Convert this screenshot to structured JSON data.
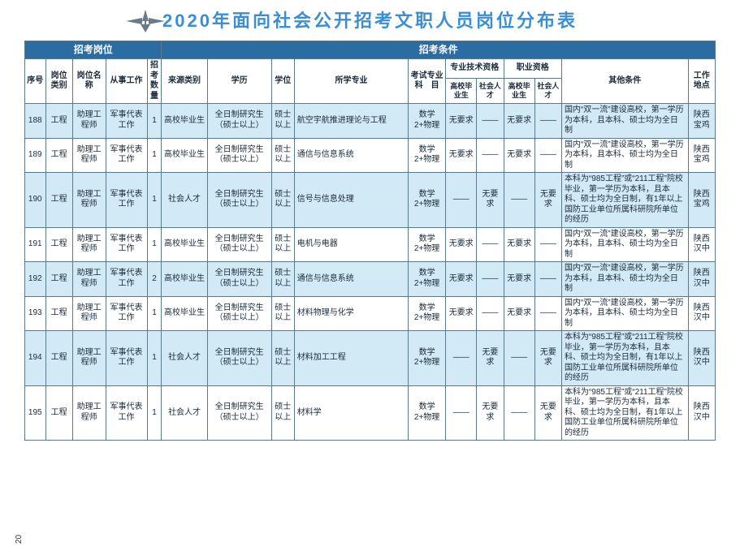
{
  "page": {
    "title": "2020年面向社会公开招考文职人员岗位分布表",
    "number": "20"
  },
  "colors": {
    "title": "#3a8fd4",
    "header_bg": "#2b6ca3",
    "header_fg": "#ffffff",
    "row_alt_bg": "#d2eaf5",
    "row_bg": "#ffffff",
    "border": "#5a7a8a"
  },
  "headers": {
    "group_positions": "招考岗位",
    "group_conditions": "招考条件",
    "seq": "序号",
    "cat": "岗位类别",
    "name": "岗位名称",
    "work": "从事工作",
    "qty": "招考数量",
    "src": "来源类别",
    "edu": "学历",
    "deg": "学位",
    "major": "所学专业",
    "exam": "考试专业科　目",
    "pro_qual": "专业技术资格",
    "voc_qual": "职业资格",
    "other": "其他条件",
    "loc": "工作地点",
    "sub_grad": "高校毕业生",
    "sub_soc": "社会人才"
  },
  "rows": [
    {
      "seq": "188",
      "cat": "工程",
      "name": "助理工程师",
      "work": "军事代表工作",
      "qty": "1",
      "src": "高校毕业生",
      "edu": "全日制研究生（硕士以上）",
      "deg": "硕士以上",
      "major": "航空宇航推进理论与工程",
      "exam": "数学2+物理",
      "pq1": "无要求",
      "pq2": "——",
      "vq1": "无要求",
      "vq2": "——",
      "other": "国内“双一流”建设高校，第一学历为本科，且本科、硕士均为全日制",
      "loc": "陕西宝鸡"
    },
    {
      "seq": "189",
      "cat": "工程",
      "name": "助理工程师",
      "work": "军事代表工作",
      "qty": "1",
      "src": "高校毕业生",
      "edu": "全日制研究生（硕士以上）",
      "deg": "硕士以上",
      "major": "通信与信息系统",
      "exam": "数学2+物理",
      "pq1": "无要求",
      "pq2": "——",
      "vq1": "无要求",
      "vq2": "——",
      "other": "国内“双一流”建设高校，第一学历为本科，且本科、硕士均为全日制",
      "loc": "陕西宝鸡"
    },
    {
      "seq": "190",
      "cat": "工程",
      "name": "助理工程师",
      "work": "军事代表工作",
      "qty": "1",
      "src": "社会人才",
      "edu": "全日制研究生（硕士以上）",
      "deg": "硕士以上",
      "major": "信号与信息处理",
      "exam": "数学2+物理",
      "pq1": "——",
      "pq2": "无要求",
      "vq1": "——",
      "vq2": "无要求",
      "other": "本科为“985工程”或“211工程”院校毕业，第一学历为本科，且本科、硕士均为全日制，有1年以上国防工业单位所属科研院所单位的经历",
      "loc": "陕西宝鸡"
    },
    {
      "seq": "191",
      "cat": "工程",
      "name": "助理工程师",
      "work": "军事代表工作",
      "qty": "1",
      "src": "高校毕业生",
      "edu": "全日制研究生（硕士以上）",
      "deg": "硕士以上",
      "major": "电机与电器",
      "exam": "数学2+物理",
      "pq1": "无要求",
      "pq2": "——",
      "vq1": "无要求",
      "vq2": "——",
      "other": "国内“双一流”建设高校，第一学历为本科，且本科、硕士均为全日制",
      "loc": "陕西汉中"
    },
    {
      "seq": "192",
      "cat": "工程",
      "name": "助理工程师",
      "work": "军事代表工作",
      "qty": "2",
      "src": "高校毕业生",
      "edu": "全日制研究生（硕士以上）",
      "deg": "硕士以上",
      "major": "通信与信息系统",
      "exam": "数学2+物理",
      "pq1": "无要求",
      "pq2": "——",
      "vq1": "无要求",
      "vq2": "——",
      "other": "国内“双一流”建设高校，第一学历为本科，且本科、硕士均为全日制",
      "loc": "陕西汉中"
    },
    {
      "seq": "193",
      "cat": "工程",
      "name": "助理工程师",
      "work": "军事代表工作",
      "qty": "1",
      "src": "高校毕业生",
      "edu": "全日制研究生（硕士以上）",
      "deg": "硕士以上",
      "major": "材料物理与化学",
      "exam": "数学2+物理",
      "pq1": "无要求",
      "pq2": "——",
      "vq1": "无要求",
      "vq2": "——",
      "other": "国内“双一流”建设高校，第一学历为本科，且本科、硕士均为全日制",
      "loc": "陕西汉中"
    },
    {
      "seq": "194",
      "cat": "工程",
      "name": "助理工程师",
      "work": "军事代表工作",
      "qty": "1",
      "src": "社会人才",
      "edu": "全日制研究生（硕士以上）",
      "deg": "硕士以上",
      "major": "材料加工工程",
      "exam": "数学2+物理",
      "pq1": "——",
      "pq2": "无要求",
      "vq1": "——",
      "vq2": "无要求",
      "other": "本科为“985工程”或“211工程”院校毕业，第一学历为本科，且本科、硕士均为全日制，有1年以上国防工业单位所属科研院所单位的经历",
      "loc": "陕西汉中"
    },
    {
      "seq": "195",
      "cat": "工程",
      "name": "助理工程师",
      "work": "军事代表工作",
      "qty": "1",
      "src": "社会人才",
      "edu": "全日制研究生（硕士以上）",
      "deg": "硕士以上",
      "major": "材料学",
      "exam": "数学2+物理",
      "pq1": "——",
      "pq2": "无要求",
      "vq1": "——",
      "vq2": "无要求",
      "other": "本科为“985工程”或“211工程”院校毕业，第一学历为本科，且本科、硕士均为全日制，有1年以上国防工业单位所属科研院所单位的经历",
      "loc": "陕西汉中"
    }
  ]
}
